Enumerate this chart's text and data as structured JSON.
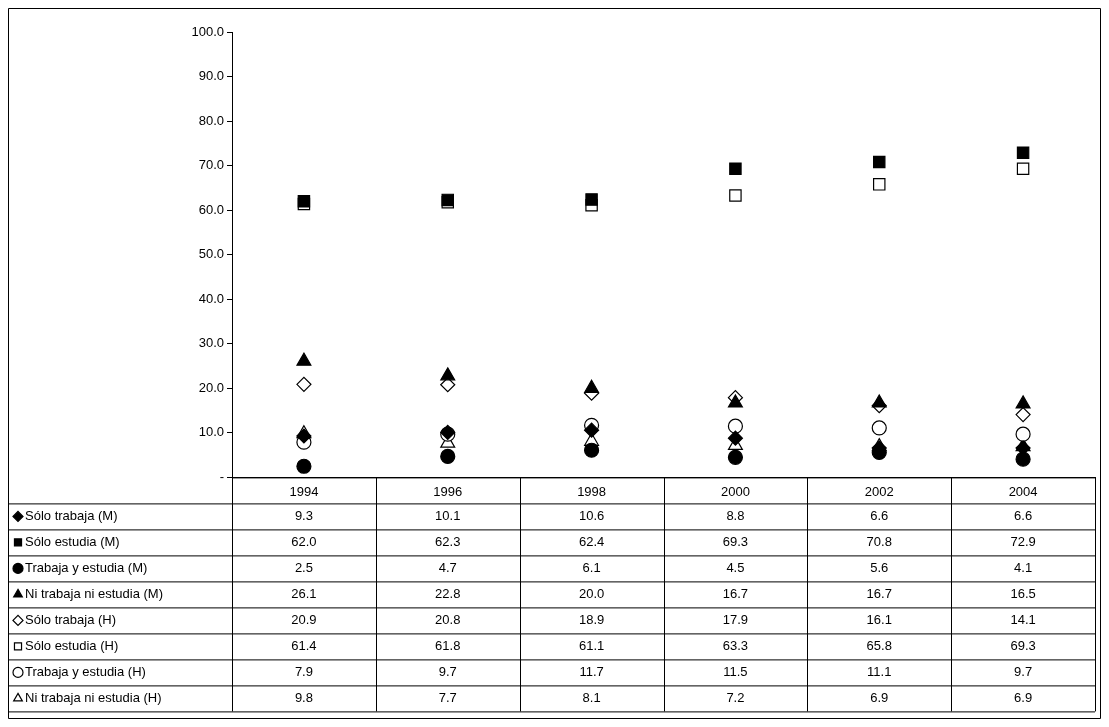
{
  "chart_data": {
    "type": "scatter",
    "categories": [
      "1994",
      "1996",
      "1998",
      "2000",
      "2002",
      "2004"
    ],
    "ylim": [
      0,
      100
    ],
    "yticks": [
      {
        "value": 0,
        "label": "-"
      },
      {
        "value": 10,
        "label": "10.0"
      },
      {
        "value": 20,
        "label": "20.0"
      },
      {
        "value": 30,
        "label": "30.0"
      },
      {
        "value": 40,
        "label": "40.0"
      },
      {
        "value": 50,
        "label": "50.0"
      },
      {
        "value": 60,
        "label": "60.0"
      },
      {
        "value": 70,
        "label": "70.0"
      },
      {
        "value": 80,
        "label": "80.0"
      },
      {
        "value": 90,
        "label": "90.0"
      },
      {
        "value": 100,
        "label": "100.0"
      }
    ],
    "grid": false,
    "legend": "bottom left",
    "series": [
      {
        "name": "Sólo trabaja (M)",
        "color": "#000000",
        "marker": "diamond",
        "values": [
          9.3,
          10.1,
          10.6,
          8.8,
          6.6,
          6.6
        ],
        "value_labels": [
          "9.3",
          "10.1",
          "10.6",
          "8.8",
          "6.6",
          "6.6"
        ]
      },
      {
        "name": "Sólo estudia (M)",
        "color": "#000000",
        "marker": "square",
        "values": [
          62.0,
          62.3,
          62.4,
          69.3,
          70.8,
          72.9
        ],
        "value_labels": [
          "62.0",
          "62.3",
          "62.4",
          "69.3",
          "70.8",
          "72.9"
        ]
      },
      {
        "name": "Trabaja y estudia (M)",
        "color": "#000000",
        "marker": "circle",
        "values": [
          2.5,
          4.7,
          6.1,
          4.5,
          5.6,
          4.1
        ],
        "value_labels": [
          "2.5",
          "4.7",
          "6.1",
          "4.5",
          "5.6",
          "4.1"
        ]
      },
      {
        "name": "Ni trabaja ni estudia (M)",
        "color": "#000000",
        "marker": "triangle",
        "values": [
          26.1,
          22.8,
          20.0,
          16.7,
          16.7,
          16.5
        ],
        "value_labels": [
          "26.1",
          "22.8",
          "20.0",
          "16.7",
          "16.7",
          "16.5"
        ]
      },
      {
        "name": "Sólo trabaja (H)",
        "color": "#ffffff",
        "marker": "diamond",
        "values": [
          20.9,
          20.8,
          18.9,
          17.9,
          16.1,
          14.1
        ],
        "value_labels": [
          "20.9",
          "20.8",
          "18.9",
          "17.9",
          "16.1",
          "14.1"
        ]
      },
      {
        "name": "Sólo estudia (H)",
        "color": "#ffffff",
        "marker": "square",
        "values": [
          61.4,
          61.8,
          61.1,
          63.3,
          65.8,
          69.3
        ],
        "value_labels": [
          "61.4",
          "61.8",
          "61.1",
          "63.3",
          "65.8",
          "69.3"
        ]
      },
      {
        "name": "Trabaja y estudia (H)",
        "color": "#ffffff",
        "marker": "circle",
        "values": [
          7.9,
          9.7,
          11.7,
          11.5,
          11.1,
          9.7
        ],
        "value_labels": [
          "7.9",
          "9.7",
          "11.7",
          "11.5",
          "11.1",
          "9.7"
        ]
      },
      {
        "name": "Ni trabaja ni estudia (H)",
        "color": "#ffffff",
        "marker": "triangle",
        "values": [
          9.8,
          7.7,
          8.1,
          7.2,
          6.9,
          6.9
        ],
        "value_labels": [
          "9.8",
          "7.7",
          "8.1",
          "7.2",
          "6.9",
          "6.9"
        ]
      }
    ]
  }
}
